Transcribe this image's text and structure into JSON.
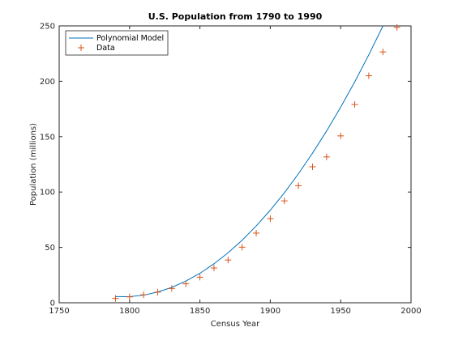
{
  "chart_data": {
    "type": "line",
    "title": "U.S. Population from 1790 to 1990",
    "xlabel": "Census Year",
    "ylabel": "Population (millions)",
    "xlim": [
      1750,
      2000
    ],
    "ylim": [
      0,
      250
    ],
    "x_ticks": [
      1750,
      1800,
      1850,
      1900,
      1950,
      2000
    ],
    "y_ticks": [
      0,
      50,
      100,
      150,
      200,
      250
    ],
    "grid": false,
    "legend_location": "top-left",
    "series": [
      {
        "name": "Polynomial Model",
        "kind": "line",
        "color": "#0072bd",
        "x": [
          1790,
          1800,
          1810,
          1820,
          1830,
          1840,
          1850,
          1860,
          1870,
          1880,
          1890,
          1900,
          1910,
          1920,
          1930,
          1940,
          1950,
          1960,
          1970,
          1980,
          1990
        ],
        "y": [
          5.6,
          5.5,
          6.9,
          9.7,
          13.9,
          19.6,
          26.6,
          35.2,
          45.1,
          56.5,
          69.4,
          83.6,
          99.3,
          116.5,
          135.1,
          155.1,
          176.6,
          199.5,
          223.9,
          249.8,
          277.1
        ]
      },
      {
        "name": "Data",
        "kind": "scatter",
        "marker": "+",
        "color": "#d95319",
        "x": [
          1790,
          1800,
          1810,
          1820,
          1830,
          1840,
          1850,
          1860,
          1870,
          1880,
          1890,
          1900,
          1910,
          1920,
          1930,
          1940,
          1950,
          1960,
          1970,
          1980,
          1990
        ],
        "y": [
          3.9,
          5.3,
          7.2,
          9.6,
          12.9,
          17.1,
          23.1,
          31.4,
          38.6,
          50.2,
          62.9,
          76.0,
          92.0,
          105.7,
          122.8,
          131.7,
          150.7,
          179.0,
          205.0,
          226.5,
          248.7
        ]
      }
    ]
  }
}
